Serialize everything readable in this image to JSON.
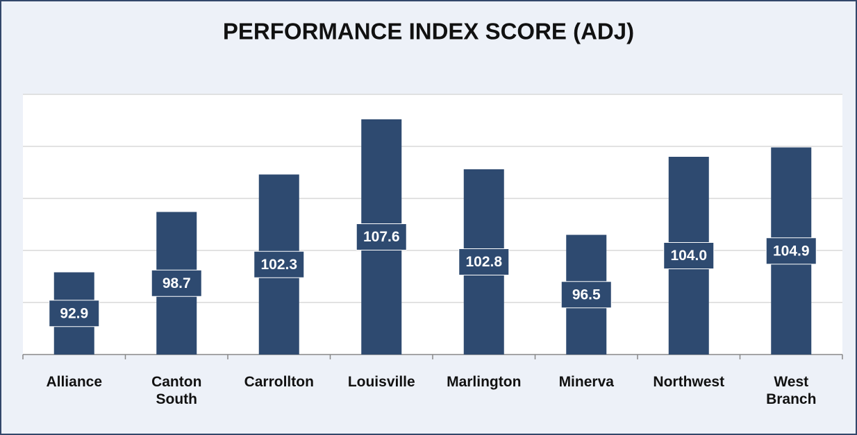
{
  "chart_data": {
    "type": "bar",
    "title": "PERFORMANCE INDEX SCORE (ADJ)",
    "categories": [
      "Alliance",
      "Canton South",
      "Carrollton",
      "Louisville",
      "Marlington",
      "Minerva",
      "Northwest",
      "West Branch"
    ],
    "values": [
      92.9,
      98.7,
      102.3,
      107.6,
      102.8,
      96.5,
      104.0,
      104.9
    ],
    "value_labels": [
      "92.9",
      "98.7",
      "102.3",
      "107.6",
      "102.8",
      "96.5",
      "104.0",
      "104.9"
    ],
    "color": "#2e4a70",
    "ylim": [
      85,
      110
    ],
    "yticks": [
      85,
      90,
      95,
      100,
      105,
      110
    ],
    "grid": true
  }
}
